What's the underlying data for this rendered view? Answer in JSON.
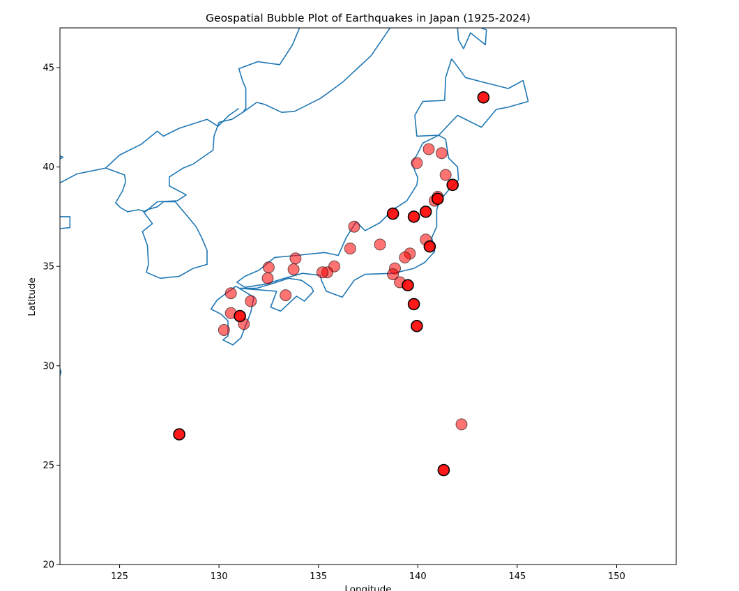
{
  "chart_data": {
    "type": "scatter",
    "title": "Geospatial Bubble Plot of Earthquakes in Japan (1925-2024)",
    "xlabel": "Longitude",
    "ylabel": "Latitude",
    "xlim": [
      122,
      153
    ],
    "ylim": [
      20,
      47
    ],
    "xticks": [
      125,
      130,
      135,
      140,
      145,
      150
    ],
    "yticks": [
      20,
      25,
      30,
      35,
      40,
      45
    ],
    "grid": false,
    "basemap": "coastlines",
    "colors": {
      "marker_fill": "#ff0000",
      "marker_edge": "#000000",
      "coastline": "#1f77b4"
    },
    "series": [
      {
        "style": "translucent",
        "points": [
          [
            139.95,
            40.2
          ],
          [
            140.55,
            40.9
          ],
          [
            141.2,
            40.7
          ],
          [
            141.4,
            39.6
          ],
          [
            141.0,
            38.5
          ],
          [
            140.85,
            38.3
          ],
          [
            140.4,
            36.35
          ],
          [
            139.6,
            35.65
          ],
          [
            139.35,
            35.45
          ],
          [
            138.85,
            34.9
          ],
          [
            138.75,
            34.6
          ],
          [
            139.1,
            34.2
          ],
          [
            138.1,
            36.1
          ],
          [
            136.8,
            37.0
          ],
          [
            136.6,
            35.9
          ],
          [
            135.8,
            35.0
          ],
          [
            135.45,
            34.7
          ],
          [
            135.2,
            34.7
          ],
          [
            133.85,
            35.4
          ],
          [
            133.75,
            34.85
          ],
          [
            133.35,
            33.55
          ],
          [
            132.5,
            34.95
          ],
          [
            132.45,
            34.4
          ],
          [
            131.6,
            33.25
          ],
          [
            130.6,
            33.65
          ],
          [
            130.6,
            32.65
          ],
          [
            131.25,
            32.1
          ],
          [
            130.25,
            31.8
          ],
          [
            142.2,
            27.05
          ]
        ]
      },
      {
        "style": "bold",
        "points": [
          [
            143.3,
            43.5
          ],
          [
            141.75,
            39.1
          ],
          [
            140.4,
            37.75
          ],
          [
            138.75,
            37.65
          ],
          [
            139.8,
            37.5
          ],
          [
            141.0,
            38.4
          ],
          [
            140.6,
            36.0
          ],
          [
            139.5,
            34.05
          ],
          [
            139.8,
            33.1
          ],
          [
            139.95,
            32.0
          ],
          [
            131.05,
            32.5
          ],
          [
            128.0,
            26.55
          ],
          [
            141.3,
            24.75
          ]
        ]
      }
    ],
    "coastlines": [
      [
        [
          127.05,
          34.4
        ],
        [
          128.0,
          34.5
        ],
        [
          128.7,
          34.9
        ],
        [
          129.4,
          35.1
        ],
        [
          129.4,
          35.8
        ],
        [
          129.15,
          36.4
        ],
        [
          128.85,
          37.0
        ],
        [
          128.35,
          37.6
        ],
        [
          127.8,
          38.25
        ],
        [
          127.2,
          38.25
        ],
        [
          126.9,
          38.0
        ],
        [
          126.4,
          37.85
        ],
        [
          126.2,
          37.75
        ],
        [
          126.65,
          37.15
        ],
        [
          126.15,
          36.75
        ],
        [
          126.4,
          36.05
        ],
        [
          126.45,
          35.1
        ],
        [
          126.35,
          34.7
        ],
        [
          127.05,
          34.4
        ]
      ],
      [
        [
          122.0,
          39.2
        ],
        [
          122.85,
          39.65
        ],
        [
          124.3,
          39.95
        ],
        [
          125.25,
          39.6
        ],
        [
          125.3,
          39.25
        ],
        [
          125.15,
          38.8
        ],
        [
          124.8,
          38.2
        ],
        [
          125.05,
          37.95
        ],
        [
          125.4,
          37.75
        ],
        [
          125.95,
          37.85
        ],
        [
          126.3,
          37.75
        ],
        [
          126.9,
          38.25
        ],
        [
          127.9,
          38.3
        ],
        [
          128.35,
          38.6
        ],
        [
          127.5,
          39.05
        ],
        [
          127.5,
          39.5
        ],
        [
          128.2,
          39.95
        ],
        [
          128.7,
          40.15
        ],
        [
          129.7,
          40.85
        ],
        [
          129.75,
          41.55
        ],
        [
          130.0,
          42.25
        ],
        [
          130.65,
          42.4
        ],
        [
          131.2,
          42.75
        ],
        [
          131.9,
          43.25
        ],
        [
          132.3,
          43.15
        ],
        [
          133.15,
          42.75
        ],
        [
          133.8,
          42.8
        ],
        [
          135.1,
          43.45
        ],
        [
          136.2,
          44.25
        ],
        [
          137.65,
          45.6
        ],
        [
          138.3,
          46.55
        ],
        [
          138.6,
          47.0
        ]
      ],
      [
        [
          131.2,
          42.75
        ],
        [
          131.35,
          42.95
        ],
        [
          131.35,
          43.95
        ],
        [
          131.2,
          44.3
        ],
        [
          131.0,
          44.95
        ],
        [
          131.95,
          45.3
        ],
        [
          133.05,
          45.15
        ],
        [
          133.7,
          46.15
        ],
        [
          134.05,
          47.0
        ]
      ],
      [
        [
          131.0,
          42.95
        ],
        [
          130.5,
          42.6
        ],
        [
          129.95,
          42.05
        ],
        [
          129.4,
          42.4
        ],
        [
          128.0,
          41.95
        ],
        [
          127.2,
          41.55
        ],
        [
          126.9,
          41.8
        ],
        [
          126.1,
          41.15
        ],
        [
          125.0,
          40.6
        ],
        [
          124.3,
          39.95
        ]
      ],
      [
        [
          141.7,
          45.45
        ],
        [
          142.4,
          44.5
        ],
        [
          143.35,
          44.25
        ],
        [
          144.55,
          43.95
        ],
        [
          145.3,
          44.35
        ],
        [
          145.55,
          43.3
        ],
        [
          144.5,
          43.0
        ],
        [
          143.95,
          42.9
        ],
        [
          143.2,
          42.0
        ],
        [
          142.0,
          42.6
        ],
        [
          141.05,
          41.6
        ],
        [
          139.95,
          41.55
        ],
        [
          139.85,
          42.6
        ],
        [
          140.25,
          43.3
        ],
        [
          141.35,
          43.35
        ],
        [
          141.4,
          44.5
        ],
        [
          141.7,
          45.45
        ]
      ],
      [
        [
          141.05,
          41.6
        ],
        [
          141.4,
          41.4
        ],
        [
          141.55,
          40.45
        ],
        [
          142.0,
          40.0
        ],
        [
          142.05,
          39.35
        ],
        [
          141.6,
          38.9
        ],
        [
          141.1,
          38.3
        ],
        [
          140.95,
          37.85
        ],
        [
          140.95,
          37.0
        ],
        [
          140.7,
          36.45
        ],
        [
          140.85,
          35.75
        ],
        [
          140.35,
          35.2
        ],
        [
          139.8,
          34.9
        ],
        [
          138.75,
          34.65
        ],
        [
          137.35,
          34.6
        ],
        [
          136.8,
          34.3
        ],
        [
          136.2,
          33.45
        ],
        [
          135.4,
          33.75
        ],
        [
          135.15,
          34.3
        ],
        [
          135.1,
          34.55
        ],
        [
          134.2,
          34.65
        ],
        [
          133.3,
          34.4
        ],
        [
          132.3,
          34.1
        ],
        [
          131.3,
          33.95
        ],
        [
          130.9,
          34.2
        ],
        [
          131.3,
          34.5
        ],
        [
          132.0,
          34.8
        ],
        [
          132.8,
          35.45
        ],
        [
          133.9,
          35.55
        ],
        [
          135.3,
          35.7
        ],
        [
          136.0,
          35.55
        ],
        [
          136.4,
          36.45
        ],
        [
          136.9,
          37.25
        ],
        [
          137.35,
          36.8
        ],
        [
          138.1,
          37.2
        ],
        [
          138.75,
          37.85
        ],
        [
          139.45,
          38.3
        ],
        [
          139.95,
          39.1
        ],
        [
          140.0,
          39.45
        ],
        [
          139.7,
          40.2
        ],
        [
          139.95,
          40.6
        ],
        [
          140.25,
          41.2
        ],
        [
          141.05,
          41.6
        ]
      ],
      [
        [
          131.0,
          33.9
        ],
        [
          131.9,
          33.9
        ],
        [
          132.9,
          34.2
        ],
        [
          133.5,
          34.4
        ],
        [
          134.15,
          34.3
        ],
        [
          134.65,
          33.95
        ],
        [
          134.75,
          33.75
        ],
        [
          134.3,
          33.25
        ],
        [
          133.9,
          33.5
        ],
        [
          133.1,
          32.75
        ],
        [
          132.6,
          32.95
        ],
        [
          132.9,
          33.75
        ],
        [
          131.0,
          33.9
        ]
      ],
      [
        [
          130.85,
          34.0
        ],
        [
          131.75,
          33.45
        ],
        [
          131.6,
          32.7
        ],
        [
          131.1,
          31.4
        ],
        [
          130.7,
          31.05
        ],
        [
          130.2,
          31.3
        ],
        [
          130.45,
          31.5
        ],
        [
          130.45,
          32.25
        ],
        [
          130.1,
          32.6
        ],
        [
          129.6,
          32.85
        ],
        [
          129.9,
          33.3
        ],
        [
          130.3,
          33.6
        ],
        [
          130.85,
          34.0
        ]
      ],
      [
        [
          122.0,
          37.5
        ],
        [
          122.5,
          37.5
        ],
        [
          122.5,
          36.95
        ],
        [
          122.0,
          36.9
        ]
      ],
      [
        [
          122.0,
          40.4
        ],
        [
          122.15,
          40.5
        ],
        [
          122.0,
          40.55
        ]
      ],
      [
        [
          142.0,
          47.0
        ],
        [
          142.05,
          46.4
        ],
        [
          142.3,
          45.95
        ],
        [
          142.65,
          46.75
        ],
        [
          143.4,
          46.15
        ],
        [
          143.45,
          46.9
        ],
        [
          143.2,
          47.0
        ]
      ],
      [
        [
          122.0,
          29.85
        ],
        [
          122.05,
          29.7
        ],
        [
          122.0,
          29.5
        ]
      ]
    ]
  }
}
